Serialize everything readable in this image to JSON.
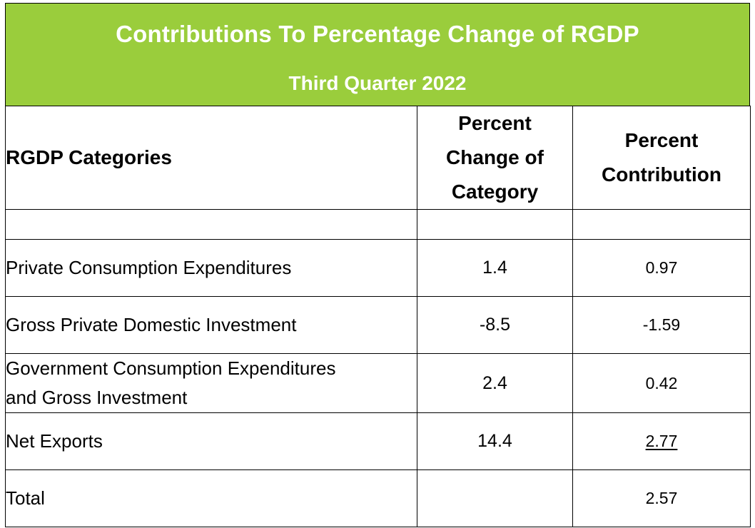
{
  "header": {
    "title": "Contributions To Percentage Change of RGDP",
    "subtitle": "Third Quarter 2022"
  },
  "colors": {
    "banner": "#9acd3c",
    "banner_text": "#ffffff"
  },
  "table": {
    "columns": [
      "RGDP Categories",
      "Percent Change of Category",
      "Percent Contribution"
    ],
    "rows": [
      {
        "category": "Private Consumption Expenditures",
        "change": "1.4",
        "contribution": "0.97"
      },
      {
        "category": "Gross Private Domestic Investment",
        "change": "-8.5",
        "contribution": "-1.59"
      },
      {
        "category": "Government Consumption Expenditures and Gross Investment",
        "change": "2.4",
        "contribution": "0.42"
      },
      {
        "category": "Net Exports",
        "change": "14.4",
        "contribution": "2.77"
      },
      {
        "category": "Total",
        "change": "",
        "contribution": "2.57"
      }
    ]
  }
}
